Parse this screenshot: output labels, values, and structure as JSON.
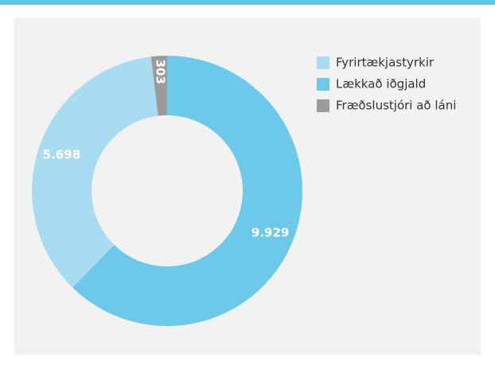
{
  "chart_data": {
    "type": "donut",
    "categories": [
      "Fyrirtækjastyrkir",
      "Lækkað iðgjald",
      "Fræðslustjóri að láni"
    ],
    "values": [
      5698,
      9929,
      303
    ],
    "value_labels": [
      "5.698",
      "9.929",
      "303"
    ],
    "colors": [
      "#a9dcf1",
      "#6cc9ea",
      "#9b9b9b"
    ],
    "legend": "right"
  }
}
